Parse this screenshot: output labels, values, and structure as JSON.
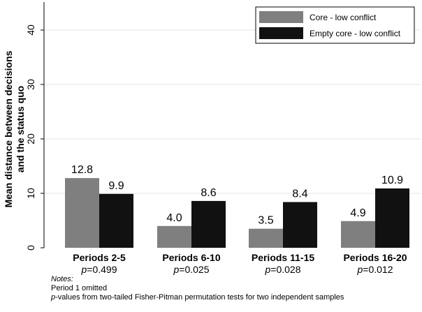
{
  "chart_data": {
    "type": "bar",
    "ylabel": "Mean distance between decisions and the status quo",
    "ylim": [
      0,
      45
    ],
    "yticks": [
      0,
      10,
      20,
      30,
      40
    ],
    "grid": true,
    "legend_position": "top-right",
    "categories": [
      "Periods 2-5",
      "Periods 6-10",
      "Periods 11-15",
      "Periods 16-20"
    ],
    "pvalues": [
      "=0.499",
      "=0.025",
      "=0.028",
      "=0.012"
    ],
    "p_symbol": "p",
    "series": [
      {
        "name": "Core - low conflict",
        "color": "#7f7f7f",
        "values": [
          12.8,
          4.0,
          3.5,
          4.9
        ],
        "labels": [
          "12.8",
          "4.0",
          "3.5",
          "4.9"
        ]
      },
      {
        "name": "Empty core - low conflict",
        "color": "#111111",
        "values": [
          9.9,
          8.6,
          8.4,
          10.9
        ],
        "labels": [
          "9.9",
          "8.6",
          "8.4",
          "10.9"
        ]
      }
    ]
  },
  "notes": {
    "title": "Notes:",
    "line1": "Period 1 omitted",
    "line2_italic": "p",
    "line2_rest": "-values from two-tailed Fisher-Pitman permutation tests for two independent samples"
  }
}
